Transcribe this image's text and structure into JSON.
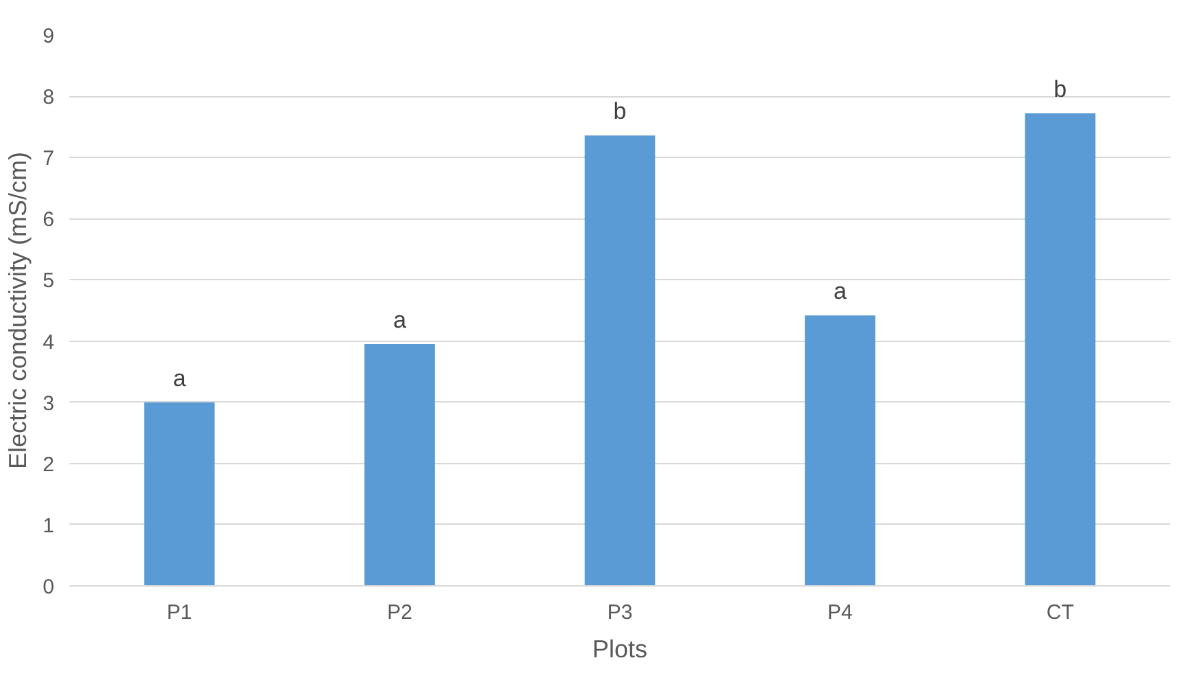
{
  "chart_data": {
    "type": "bar",
    "xlabel": "Plots",
    "ylabel": "Electric conductivity (mS/cm)",
    "categories": [
      "P1",
      "P2",
      "P3",
      "P4",
      "CT"
    ],
    "values": [
      3.0,
      3.95,
      7.36,
      4.42,
      7.72
    ],
    "color": "#5b9bd5",
    "ylim": [
      0,
      9
    ],
    "yticks": [
      0,
      1,
      2,
      3,
      4,
      5,
      6,
      7,
      8,
      9
    ],
    "grid": "y",
    "annotations": [
      {
        "text": "a",
        "x": "P1",
        "y": 3.0
      },
      {
        "text": "a",
        "x": "P2",
        "y": 3.95
      },
      {
        "text": "b",
        "x": "P3",
        "y": 7.36
      },
      {
        "text": "a",
        "x": "P4",
        "y": 4.42
      },
      {
        "text": "b",
        "x": "CT",
        "y": 7.72
      }
    ]
  }
}
